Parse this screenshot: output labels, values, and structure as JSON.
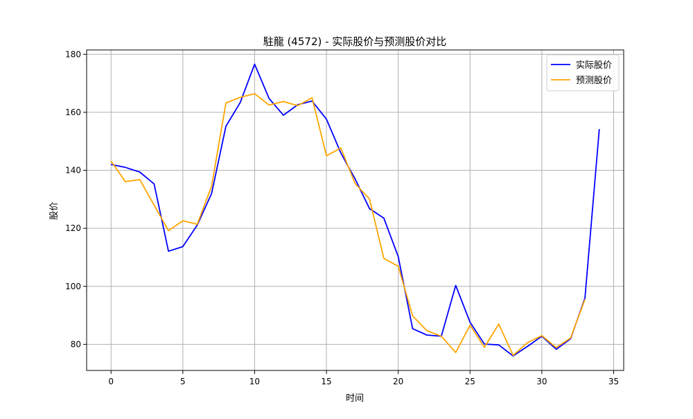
{
  "chart_data": {
    "type": "line",
    "title": "駐龍 (4572) - 实际股价与预测股价对比",
    "xlabel": "时间",
    "ylabel": "股价",
    "xlim": [
      -1.7,
      35.7
    ],
    "ylim": [
      71,
      181.5
    ],
    "xticks": [
      0,
      5,
      10,
      15,
      20,
      25,
      30,
      35
    ],
    "yticks": [
      80,
      100,
      120,
      140,
      160,
      180
    ],
    "grid": true,
    "legend_position": "top-right",
    "series": [
      {
        "name": "实际股价",
        "color": "#0000ff",
        "x": [
          0,
          1,
          2,
          3,
          4,
          5,
          6,
          7,
          8,
          9,
          10,
          11,
          12,
          13,
          14,
          15,
          16,
          17,
          18,
          19,
          20,
          21,
          22,
          23,
          24,
          25,
          26,
          27,
          28,
          29,
          30,
          31,
          32,
          33,
          34
        ],
        "y": [
          142.0,
          141.0,
          139.4,
          135.3,
          112.1,
          113.7,
          121.1,
          132.0,
          155.2,
          163.4,
          176.6,
          164.8,
          159.0,
          162.6,
          163.9,
          157.6,
          146.0,
          137.0,
          126.8,
          123.5,
          110.2,
          85.4,
          83.2,
          82.8,
          100.3,
          87.6,
          80.1,
          79.8,
          76.0,
          79.3,
          82.8,
          78.3,
          81.9,
          96.0,
          154.2
        ]
      },
      {
        "name": "预测股价",
        "color": "#ffa500",
        "x": [
          0,
          1,
          2,
          3,
          4,
          5,
          6,
          7,
          8,
          9,
          10,
          11,
          12,
          13,
          14,
          15,
          16,
          17,
          18,
          19,
          20,
          21,
          22,
          23,
          24,
          25,
          26,
          27,
          28,
          29,
          30,
          31,
          32,
          33
        ],
        "y": [
          143.2,
          136.1,
          136.8,
          128.0,
          119.2,
          122.6,
          121.4,
          134.5,
          163.2,
          165.2,
          166.4,
          162.5,
          163.7,
          162.3,
          165.0,
          145.0,
          147.7,
          135.4,
          130.1,
          109.6,
          106.9,
          89.8,
          84.7,
          82.8,
          77.2,
          86.6,
          79.0,
          87.0,
          76.2,
          80.6,
          83.0,
          78.9,
          82.2,
          95.5
        ]
      }
    ]
  }
}
